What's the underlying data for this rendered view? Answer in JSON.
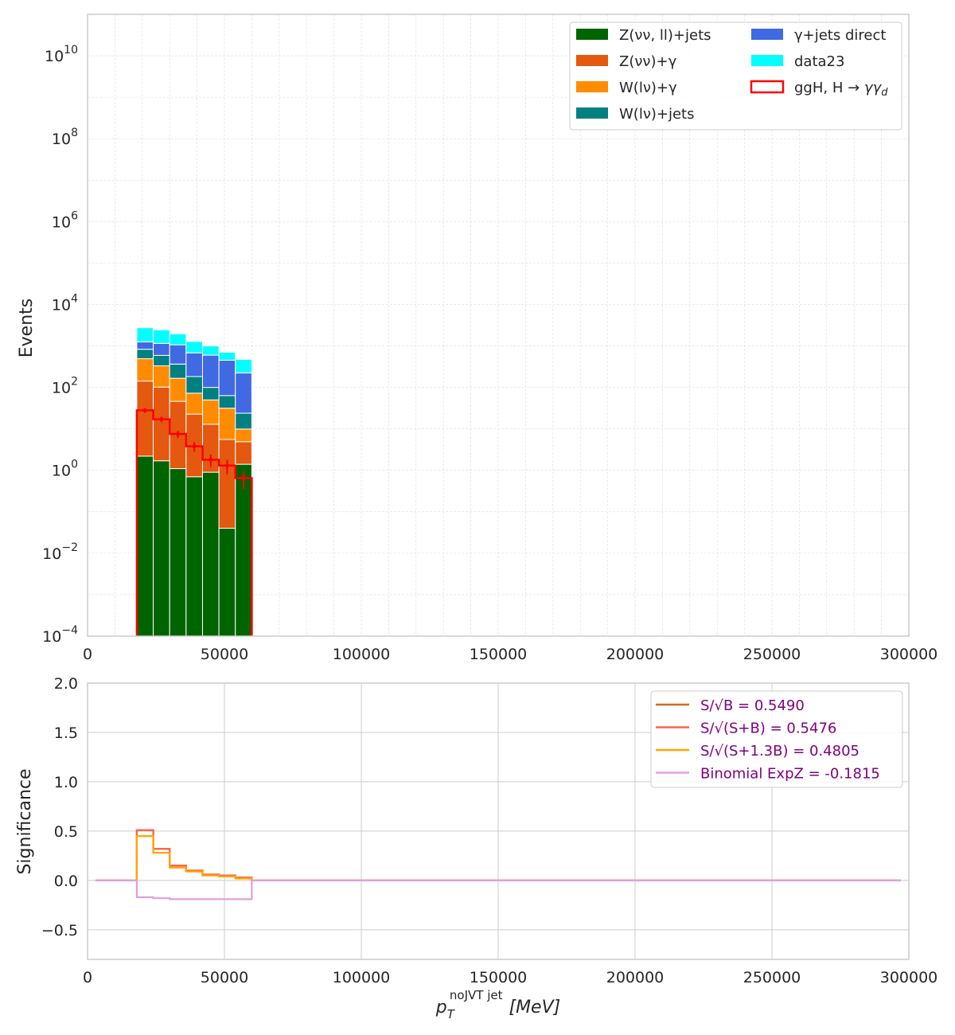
{
  "chart_data": [
    {
      "type": "bar",
      "stacked": true,
      "log_y": true,
      "ylabel": "Events",
      "xlim": [
        0,
        300000
      ],
      "ylim": [
        0.0001,
        100000000000
      ],
      "grid": true,
      "legend_location": "top-right",
      "x_ticks": [
        "0",
        "50000",
        "100000",
        "150000",
        "200000",
        "250000",
        "300000"
      ],
      "y_ticks": [
        {
          "base": "10",
          "exp": "−4"
        },
        {
          "base": "10",
          "exp": "−2"
        },
        {
          "base": "10",
          "exp": "0"
        },
        {
          "base": "10",
          "exp": "2"
        },
        {
          "base": "10",
          "exp": "4"
        },
        {
          "base": "10",
          "exp": "6"
        },
        {
          "base": "10",
          "exp": "8"
        },
        {
          "base": "10",
          "exp": "10"
        }
      ],
      "bin_edges": [
        18000,
        24000,
        30000,
        36000,
        42000,
        48000,
        54000,
        60000
      ],
      "series": [
        {
          "name": "Z(νν, ll)+jets",
          "color": "#006400",
          "values": [
            2.2,
            1.7,
            1.1,
            0.7,
            0.9,
            0.04,
            1.4
          ]
        },
        {
          "name": "Z(νν)+γ",
          "color": "#e4580f",
          "values": [
            140,
            100,
            45,
            22,
            12,
            5.5,
            3.5
          ]
        },
        {
          "name": "W(lν)+γ",
          "color": "#ff8c00",
          "values": [
            350,
            230,
            120,
            50,
            37,
            26,
            5
          ]
        },
        {
          "name": "W(lν)+jets",
          "color": "#008080",
          "values": [
            340,
            260,
            200,
            110,
            50,
            32,
            14
          ]
        },
        {
          "name": "γ+jets direct",
          "color": "#4169e1",
          "values": [
            420,
            560,
            700,
            500,
            500,
            390,
            200
          ]
        },
        {
          "name": "data23",
          "color": "#00ffff",
          "values": [
            1500,
            1300,
            900,
            600,
            400,
            250,
            250
          ]
        }
      ],
      "signal": {
        "name": "ggH, H→γγ_d",
        "legend_main": "ggH, H",
        "legend_sub": "d",
        "color": "#ff0000",
        "values": [
          28,
          17,
          7.5,
          3.8,
          1.8,
          1.3,
          0.65
        ],
        "errors": [
          3.5,
          2.5,
          1.5,
          1.0,
          0.6,
          0.5,
          0.3
        ]
      }
    },
    {
      "type": "line",
      "step": true,
      "ylabel": "Significance",
      "xlabel_main": "p",
      "xlabel_sub": "T",
      "xlabel_sup": "noJVT jet",
      "xlabel_unit": "[MeV]",
      "xlim": [
        0,
        300000
      ],
      "ylim": [
        -0.8,
        2.0
      ],
      "grid": true,
      "legend_location": "top-right",
      "x_ticks": [
        "0",
        "50000",
        "100000",
        "150000",
        "200000",
        "250000",
        "300000"
      ],
      "y_ticks": [
        "−0.5",
        "0.0",
        "0.5",
        "1.0",
        "1.5",
        "2.0"
      ],
      "x_range": [
        3000,
        297000
      ],
      "bin_edges": [
        18000,
        24000,
        30000,
        36000,
        42000,
        48000,
        54000,
        60000
      ],
      "series": [
        {
          "name": "S/√B = 0.5490",
          "color": "#d2691e",
          "values": [
            0.51,
            0.32,
            0.15,
            0.1,
            0.06,
            0.05,
            0.03
          ]
        },
        {
          "name": "S/√(S+B) = 0.5476",
          "color": "#ff6347",
          "values": [
            0.51,
            0.32,
            0.15,
            0.1,
            0.06,
            0.05,
            0.03
          ]
        },
        {
          "name": "S/√(S+1.3B) = 0.4805",
          "color": "#ffa500",
          "values": [
            0.45,
            0.28,
            0.13,
            0.09,
            0.05,
            0.04,
            0.02
          ]
        },
        {
          "name": "Binomial ExpZ = -0.1815",
          "color": "#dda0dd",
          "values": [
            -0.17,
            -0.18,
            -0.19,
            -0.19,
            -0.19,
            -0.19,
            -0.19
          ]
        }
      ]
    }
  ]
}
